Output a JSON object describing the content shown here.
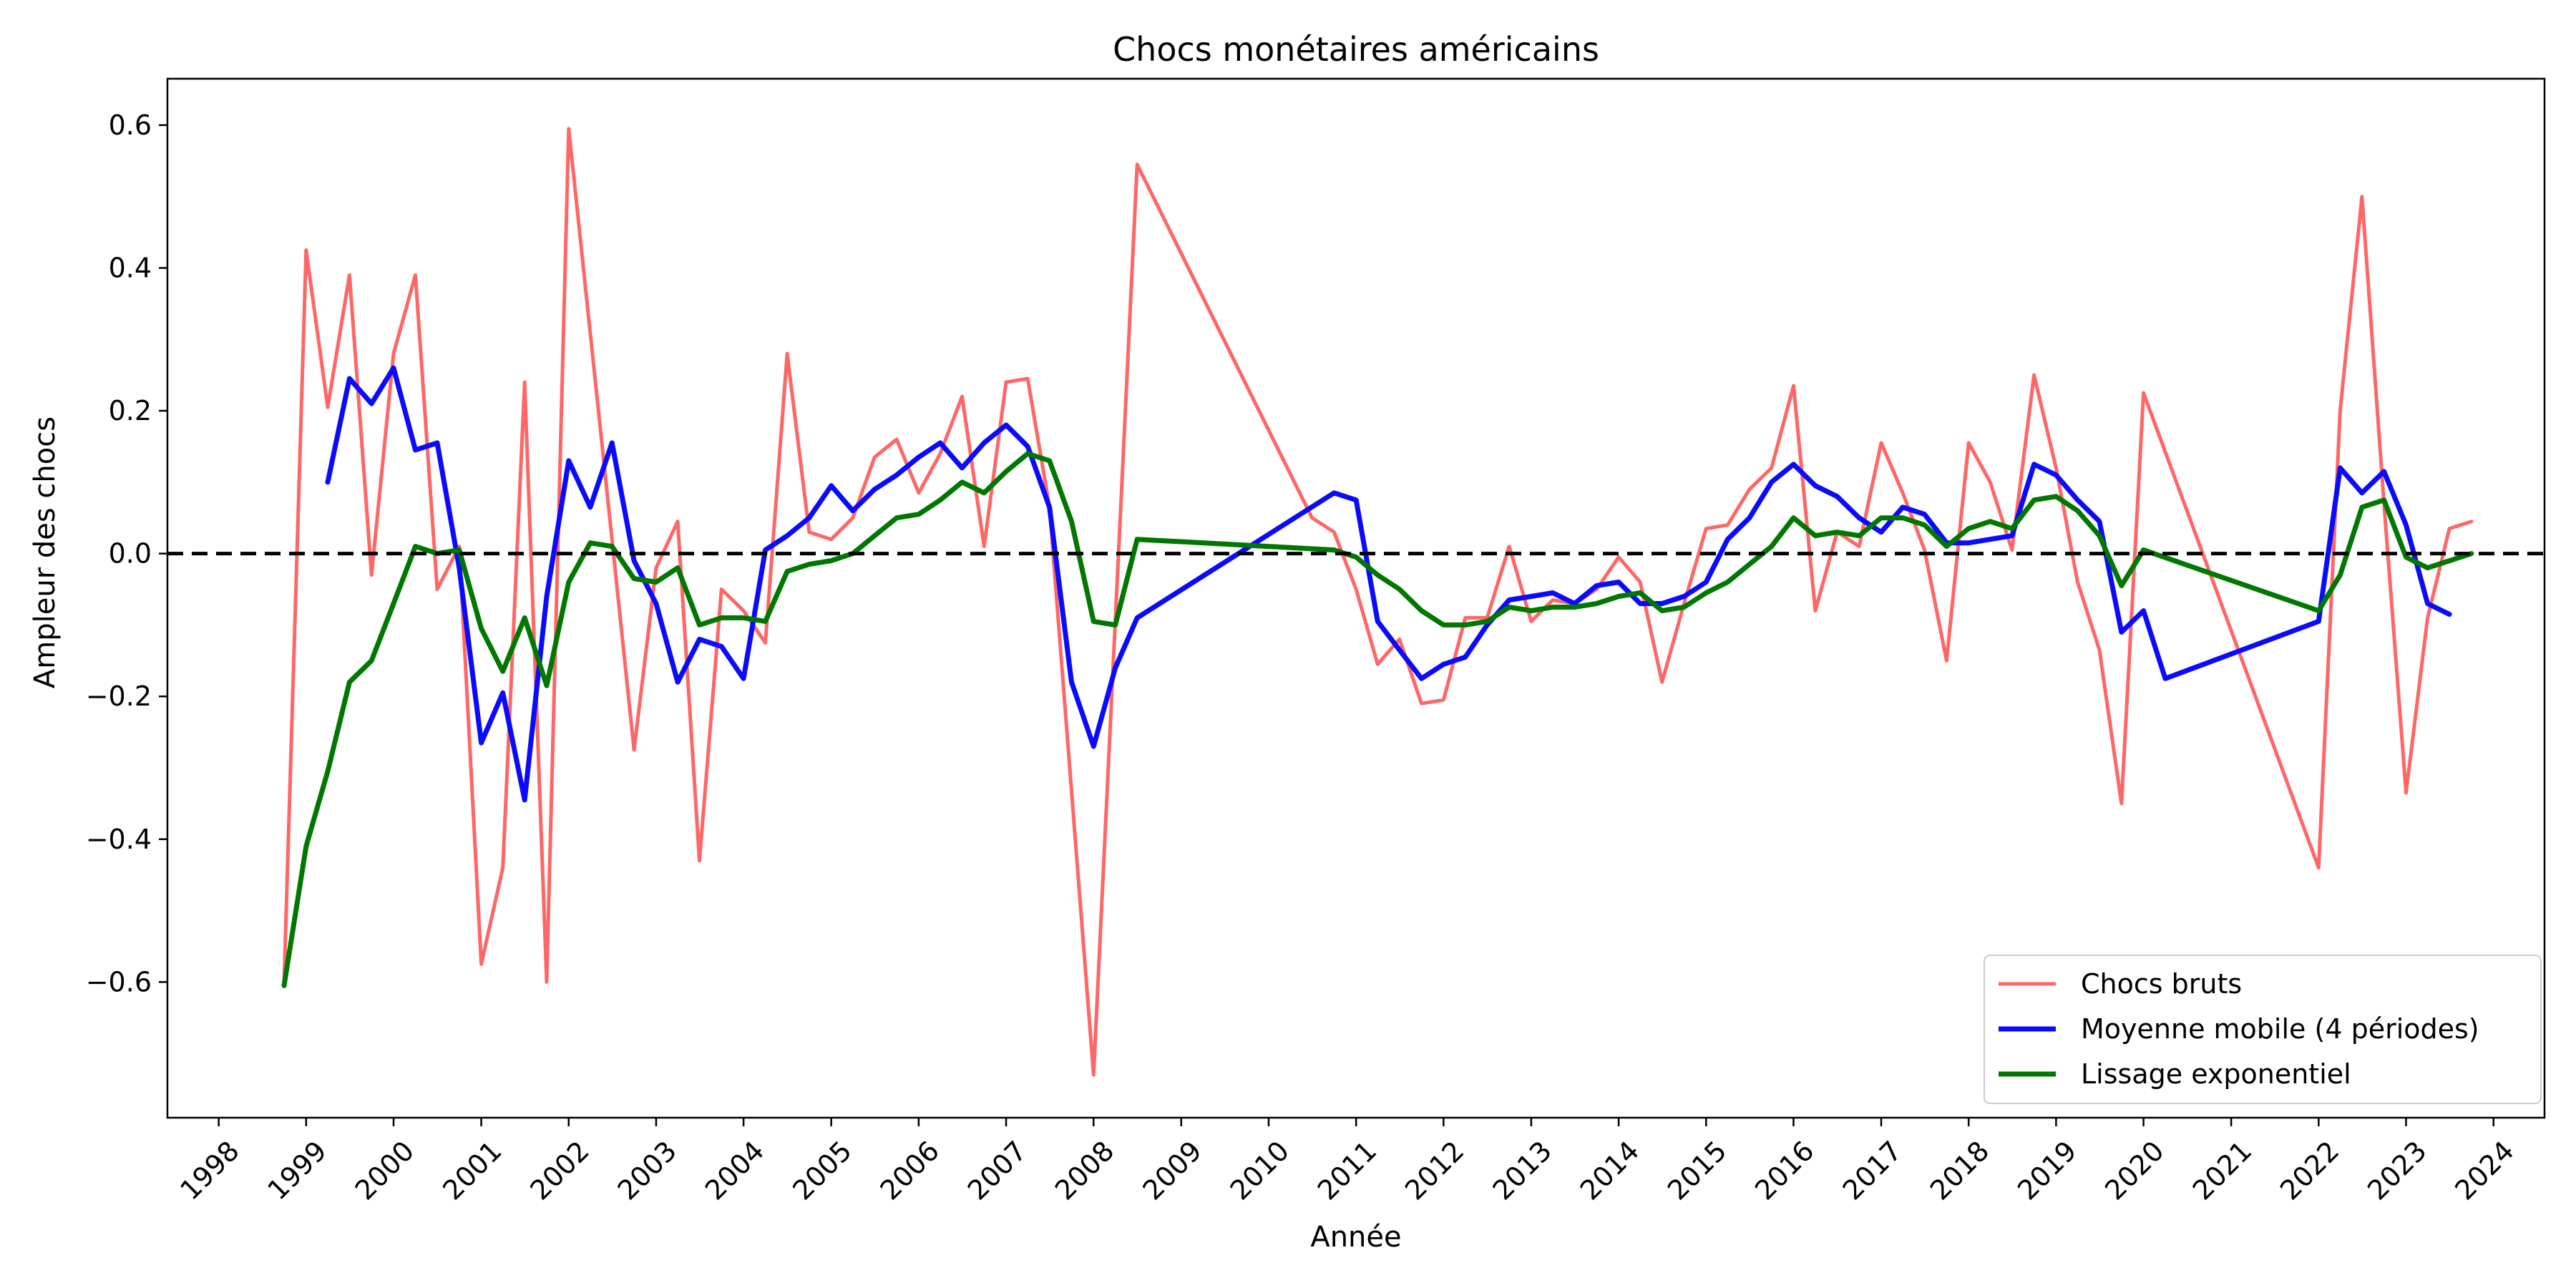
{
  "chart_data": {
    "type": "line",
    "title": "Chocs monétaires américains",
    "xlabel": "Année",
    "ylabel": "Ampleur des chocs",
    "xlim": [
      "1997-06-01",
      "2024-08-01"
    ],
    "ylim": [
      -0.79,
      0.665
    ],
    "x_ticks": [
      "1998",
      "1999",
      "2000",
      "2001",
      "2002",
      "2003",
      "2004",
      "2005",
      "2006",
      "2007",
      "2008",
      "2009",
      "2010",
      "2011",
      "2012",
      "2013",
      "2014",
      "2015",
      "2016",
      "2017",
      "2018",
      "2019",
      "2020",
      "2021",
      "2022",
      "2023",
      "2024"
    ],
    "y_ticks": [
      0.6,
      0.4,
      0.2,
      0.0,
      -0.2,
      -0.4,
      -0.6
    ],
    "y_tick_labels": [
      "0.6",
      "0.4",
      "0.2",
      "0.0",
      "−0.2",
      "−0.4",
      "−0.6"
    ],
    "grid": false,
    "legend_position": "lower right",
    "reference_line": {
      "y": 0.0,
      "style": "dashed",
      "color": "#000000"
    },
    "series": [
      {
        "name": "Chocs bruts",
        "color": "#ff6666",
        "width": "thin",
        "points": [
          [
            "1998-10-01",
            -0.6
          ],
          [
            "1999-01-01",
            0.425
          ],
          [
            "1999-04-01",
            0.205
          ],
          [
            "1999-07-01",
            0.39
          ],
          [
            "1999-10-01",
            -0.03
          ],
          [
            "2000-01-01",
            0.28
          ],
          [
            "2000-04-01",
            0.39
          ],
          [
            "2000-07-01",
            -0.05
          ],
          [
            "2000-10-01",
            0.01
          ],
          [
            "2001-01-01",
            -0.575
          ],
          [
            "2001-04-01",
            -0.44
          ],
          [
            "2001-07-01",
            0.24
          ],
          [
            "2001-10-01",
            -0.6
          ],
          [
            "2002-01-01",
            0.595
          ],
          [
            "2002-07-01",
            0.02
          ],
          [
            "2002-10-01",
            -0.275
          ],
          [
            "2003-01-01",
            -0.02
          ],
          [
            "2003-04-01",
            0.045
          ],
          [
            "2003-07-01",
            -0.43
          ],
          [
            "2003-10-01",
            -0.05
          ],
          [
            "2004-01-01",
            -0.08
          ],
          [
            "2004-04-01",
            -0.125
          ],
          [
            "2004-07-01",
            0.28
          ],
          [
            "2004-10-01",
            0.03
          ],
          [
            "2005-01-01",
            0.02
          ],
          [
            "2005-04-01",
            0.05
          ],
          [
            "2005-07-01",
            0.135
          ],
          [
            "2005-10-01",
            0.16
          ],
          [
            "2006-01-01",
            0.085
          ],
          [
            "2006-04-01",
            0.14
          ],
          [
            "2006-07-01",
            0.22
          ],
          [
            "2006-10-01",
            0.01
          ],
          [
            "2007-01-01",
            0.24
          ],
          [
            "2007-04-01",
            0.245
          ],
          [
            "2007-07-01",
            0.065
          ],
          [
            "2008-01-01",
            -0.73
          ],
          [
            "2008-07-01",
            0.545
          ],
          [
            "2010-07-01",
            0.05
          ],
          [
            "2010-10-01",
            0.03
          ],
          [
            "2011-01-01",
            -0.05
          ],
          [
            "2011-04-01",
            -0.155
          ],
          [
            "2011-07-01",
            -0.12
          ],
          [
            "2011-10-01",
            -0.21
          ],
          [
            "2012-01-01",
            -0.205
          ],
          [
            "2012-04-01",
            -0.09
          ],
          [
            "2012-07-01",
            -0.09
          ],
          [
            "2012-10-01",
            0.01
          ],
          [
            "2013-01-01",
            -0.095
          ],
          [
            "2013-04-01",
            -0.065
          ],
          [
            "2013-07-01",
            -0.07
          ],
          [
            "2013-10-01",
            -0.05
          ],
          [
            "2014-01-01",
            -0.005
          ],
          [
            "2014-04-01",
            -0.04
          ],
          [
            "2014-07-01",
            -0.18
          ],
          [
            "2014-10-01",
            -0.07
          ],
          [
            "2015-01-01",
            0.035
          ],
          [
            "2015-04-01",
            0.04
          ],
          [
            "2015-07-01",
            0.09
          ],
          [
            "2015-10-01",
            0.12
          ],
          [
            "2016-01-01",
            0.235
          ],
          [
            "2016-04-01",
            -0.08
          ],
          [
            "2016-07-01",
            0.03
          ],
          [
            "2016-10-01",
            0.01
          ],
          [
            "2017-01-01",
            0.155
          ],
          [
            "2017-04-01",
            0.085
          ],
          [
            "2017-07-01",
            0.005
          ],
          [
            "2017-10-01",
            -0.15
          ],
          [
            "2018-01-01",
            0.155
          ],
          [
            "2018-04-01",
            0.1
          ],
          [
            "2018-07-01",
            0.005
          ],
          [
            "2018-10-01",
            0.25
          ],
          [
            "2019-01-01",
            0.12
          ],
          [
            "2019-04-01",
            -0.04
          ],
          [
            "2019-07-01",
            -0.135
          ],
          [
            "2019-10-01",
            -0.35
          ],
          [
            "2020-01-01",
            0.225
          ],
          [
            "2022-01-01",
            -0.44
          ],
          [
            "2022-04-01",
            0.2
          ],
          [
            "2022-07-01",
            0.5
          ],
          [
            "2022-10-01",
            0.07
          ],
          [
            "2023-01-01",
            -0.335
          ],
          [
            "2023-04-01",
            -0.09
          ],
          [
            "2023-07-01",
            0.035
          ],
          [
            "2023-10-01",
            0.045
          ]
        ]
      },
      {
        "name": "Moyenne mobile (4 périodes)",
        "color": "#0a0aff",
        "width": "thick",
        "points": [
          [
            "1999-04-01",
            0.1
          ],
          [
            "1999-07-01",
            0.245
          ],
          [
            "1999-10-01",
            0.21
          ],
          [
            "2000-01-01",
            0.26
          ],
          [
            "2000-04-01",
            0.145
          ],
          [
            "2000-07-01",
            0.155
          ],
          [
            "2000-10-01",
            -0.02
          ],
          [
            "2001-01-01",
            -0.265
          ],
          [
            "2001-04-01",
            -0.195
          ],
          [
            "2001-07-01",
            -0.345
          ],
          [
            "2001-10-01",
            -0.06
          ],
          [
            "2002-01-01",
            0.13
          ],
          [
            "2002-04-01",
            0.065
          ],
          [
            "2002-07-01",
            0.155
          ],
          [
            "2002-10-01",
            -0.01
          ],
          [
            "2003-01-01",
            -0.07
          ],
          [
            "2003-04-01",
            -0.18
          ],
          [
            "2003-07-01",
            -0.12
          ],
          [
            "2003-10-01",
            -0.13
          ],
          [
            "2004-01-01",
            -0.175
          ],
          [
            "2004-04-01",
            0.005
          ],
          [
            "2004-07-01",
            0.025
          ],
          [
            "2004-10-01",
            0.05
          ],
          [
            "2005-01-01",
            0.095
          ],
          [
            "2005-04-01",
            0.06
          ],
          [
            "2005-07-01",
            0.09
          ],
          [
            "2005-10-01",
            0.11
          ],
          [
            "2006-01-01",
            0.135
          ],
          [
            "2006-04-01",
            0.155
          ],
          [
            "2006-07-01",
            0.12
          ],
          [
            "2006-10-01",
            0.155
          ],
          [
            "2007-01-01",
            0.18
          ],
          [
            "2007-04-01",
            0.15
          ],
          [
            "2007-07-01",
            0.065
          ],
          [
            "2007-10-01",
            -0.18
          ],
          [
            "2008-01-01",
            -0.27
          ],
          [
            "2008-04-01",
            -0.16
          ],
          [
            "2008-07-01",
            -0.09
          ],
          [
            "2010-10-01",
            0.085
          ],
          [
            "2011-01-01",
            0.075
          ],
          [
            "2011-04-01",
            -0.095
          ],
          [
            "2011-07-01",
            -0.135
          ],
          [
            "2011-10-01",
            -0.175
          ],
          [
            "2012-01-01",
            -0.155
          ],
          [
            "2012-04-01",
            -0.145
          ],
          [
            "2012-07-01",
            -0.1
          ],
          [
            "2012-10-01",
            -0.065
          ],
          [
            "2013-01-01",
            -0.06
          ],
          [
            "2013-04-01",
            -0.055
          ],
          [
            "2013-07-01",
            -0.07
          ],
          [
            "2013-10-01",
            -0.045
          ],
          [
            "2014-01-01",
            -0.04
          ],
          [
            "2014-04-01",
            -0.07
          ],
          [
            "2014-07-01",
            -0.07
          ],
          [
            "2014-10-01",
            -0.06
          ],
          [
            "2015-01-01",
            -0.04
          ],
          [
            "2015-04-01",
            0.02
          ],
          [
            "2015-07-01",
            0.05
          ],
          [
            "2015-10-01",
            0.1
          ],
          [
            "2016-01-01",
            0.125
          ],
          [
            "2016-04-01",
            0.095
          ],
          [
            "2016-07-01",
            0.08
          ],
          [
            "2016-10-01",
            0.05
          ],
          [
            "2017-01-01",
            0.03
          ],
          [
            "2017-04-01",
            0.065
          ],
          [
            "2017-07-01",
            0.055
          ],
          [
            "2017-10-01",
            0.015
          ],
          [
            "2018-01-01",
            0.015
          ],
          [
            "2018-04-01",
            0.02
          ],
          [
            "2018-07-01",
            0.025
          ],
          [
            "2018-10-01",
            0.125
          ],
          [
            "2019-01-01",
            0.11
          ],
          [
            "2019-04-01",
            0.075
          ],
          [
            "2019-07-01",
            0.045
          ],
          [
            "2019-10-01",
            -0.11
          ],
          [
            "2020-01-01",
            -0.08
          ],
          [
            "2020-04-01",
            -0.175
          ],
          [
            "2022-01-01",
            -0.095
          ],
          [
            "2022-04-01",
            0.12
          ],
          [
            "2022-07-01",
            0.085
          ],
          [
            "2022-10-01",
            0.115
          ],
          [
            "2023-01-01",
            0.04
          ],
          [
            "2023-04-01",
            -0.07
          ],
          [
            "2023-07-01",
            -0.085
          ]
        ]
      },
      {
        "name": "Lissage exponentiel",
        "color": "#007700",
        "width": "thick",
        "points": [
          [
            "1998-10-01",
            -0.605
          ],
          [
            "1999-01-01",
            -0.41
          ],
          [
            "1999-04-01",
            -0.305
          ],
          [
            "1999-07-01",
            -0.18
          ],
          [
            "1999-10-01",
            -0.15
          ],
          [
            "2000-01-01",
            -0.07
          ],
          [
            "2000-04-01",
            0.01
          ],
          [
            "2000-07-01",
            0.0
          ],
          [
            "2000-10-01",
            0.005
          ],
          [
            "2001-01-01",
            -0.105
          ],
          [
            "2001-04-01",
            -0.165
          ],
          [
            "2001-07-01",
            -0.09
          ],
          [
            "2001-10-01",
            -0.185
          ],
          [
            "2002-01-01",
            -0.04
          ],
          [
            "2002-04-01",
            0.015
          ],
          [
            "2002-07-01",
            0.01
          ],
          [
            "2002-10-01",
            -0.035
          ],
          [
            "2003-01-01",
            -0.04
          ],
          [
            "2003-04-01",
            -0.02
          ],
          [
            "2003-07-01",
            -0.1
          ],
          [
            "2003-10-01",
            -0.09
          ],
          [
            "2004-01-01",
            -0.09
          ],
          [
            "2004-04-01",
            -0.095
          ],
          [
            "2004-07-01",
            -0.025
          ],
          [
            "2004-10-01",
            -0.015
          ],
          [
            "2005-01-01",
            -0.01
          ],
          [
            "2005-04-01",
            0.0
          ],
          [
            "2005-07-01",
            0.025
          ],
          [
            "2005-10-01",
            0.05
          ],
          [
            "2006-01-01",
            0.055
          ],
          [
            "2006-04-01",
            0.075
          ],
          [
            "2006-07-01",
            0.1
          ],
          [
            "2006-10-01",
            0.085
          ],
          [
            "2007-01-01",
            0.115
          ],
          [
            "2007-04-01",
            0.14
          ],
          [
            "2007-07-01",
            0.13
          ],
          [
            "2007-10-01",
            0.045
          ],
          [
            "2008-01-01",
            -0.095
          ],
          [
            "2008-04-01",
            -0.1
          ],
          [
            "2008-07-01",
            0.02
          ],
          [
            "2010-10-01",
            0.005
          ],
          [
            "2011-01-01",
            -0.005
          ],
          [
            "2011-04-01",
            -0.03
          ],
          [
            "2011-07-01",
            -0.05
          ],
          [
            "2011-10-01",
            -0.08
          ],
          [
            "2012-01-01",
            -0.1
          ],
          [
            "2012-04-01",
            -0.1
          ],
          [
            "2012-07-01",
            -0.095
          ],
          [
            "2012-10-01",
            -0.075
          ],
          [
            "2013-01-01",
            -0.08
          ],
          [
            "2013-04-01",
            -0.075
          ],
          [
            "2013-07-01",
            -0.075
          ],
          [
            "2013-10-01",
            -0.07
          ],
          [
            "2014-01-01",
            -0.06
          ],
          [
            "2014-04-01",
            -0.055
          ],
          [
            "2014-07-01",
            -0.08
          ],
          [
            "2014-10-01",
            -0.075
          ],
          [
            "2015-01-01",
            -0.055
          ],
          [
            "2015-04-01",
            -0.04
          ],
          [
            "2015-07-01",
            -0.015
          ],
          [
            "2015-10-01",
            0.01
          ],
          [
            "2016-01-01",
            0.05
          ],
          [
            "2016-04-01",
            0.025
          ],
          [
            "2016-07-01",
            0.03
          ],
          [
            "2016-10-01",
            0.025
          ],
          [
            "2017-01-01",
            0.05
          ],
          [
            "2017-04-01",
            0.05
          ],
          [
            "2017-07-01",
            0.04
          ],
          [
            "2017-10-01",
            0.01
          ],
          [
            "2018-01-01",
            0.035
          ],
          [
            "2018-04-01",
            0.045
          ],
          [
            "2018-07-01",
            0.035
          ],
          [
            "2018-10-01",
            0.075
          ],
          [
            "2019-01-01",
            0.08
          ],
          [
            "2019-04-01",
            0.06
          ],
          [
            "2019-07-01",
            0.025
          ],
          [
            "2019-10-01",
            -0.045
          ],
          [
            "2020-01-01",
            0.005
          ],
          [
            "2022-01-01",
            -0.08
          ],
          [
            "2022-04-01",
            -0.03
          ],
          [
            "2022-07-01",
            0.065
          ],
          [
            "2022-10-01",
            0.075
          ],
          [
            "2023-01-01",
            -0.005
          ],
          [
            "2023-04-01",
            -0.02
          ],
          [
            "2023-10-01",
            0.0
          ]
        ]
      }
    ]
  }
}
